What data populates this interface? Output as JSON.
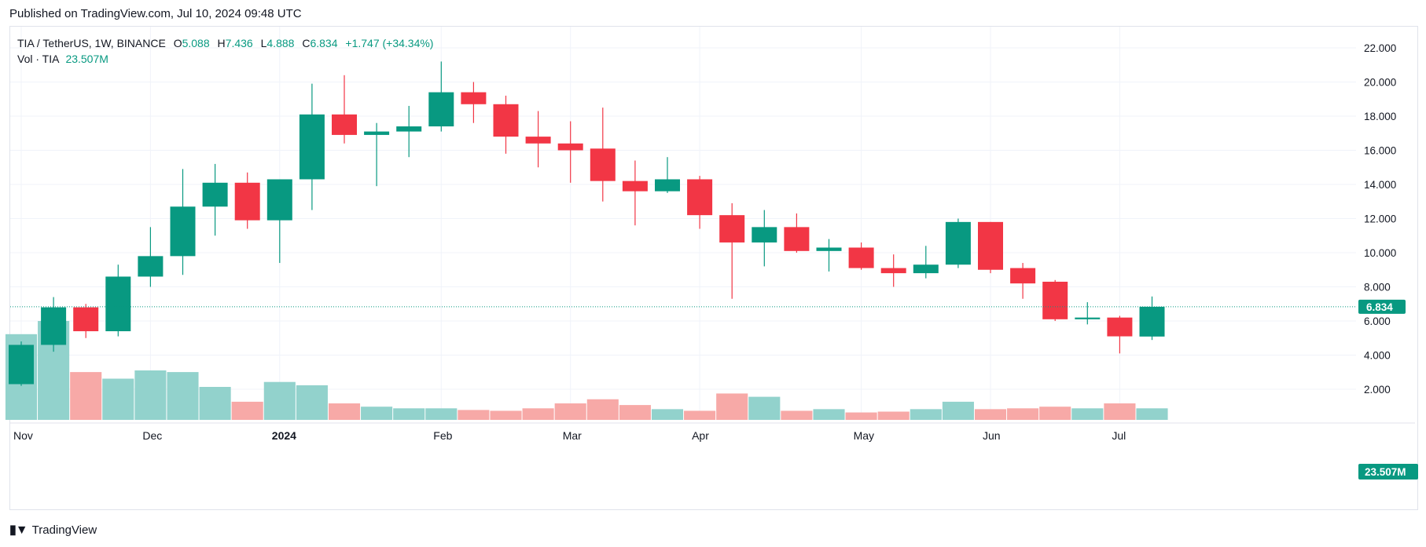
{
  "published": "Published on TradingView.com, Jul 10, 2024 09:48 UTC",
  "footer": {
    "brand": "TradingView",
    "icon": "tradingview-logo-icon"
  },
  "legend": {
    "symbol": "TIA / TetherUS, 1W, BINANCE",
    "o_label": "O",
    "o_value": "5.088",
    "h_label": "H",
    "h_value": "7.436",
    "l_label": "L",
    "l_value": "4.888",
    "c_label": "C",
    "c_value": "6.834",
    "change": "+1.747 (+34.34%)",
    "vol_label": "Vol · TIA",
    "vol_value": "23.507M"
  },
  "colors": {
    "up": "#089981",
    "down": "#F23645",
    "vol_up": "#92D2CC",
    "vol_down": "#F7A9A7",
    "grid": "#F0F3FA",
    "text": "#131722"
  },
  "chart_data": {
    "type": "candlestick",
    "ylim": [
      2.0,
      22.0
    ],
    "yticks": [
      "2.000",
      "4.000",
      "6.000",
      "8.000",
      "10.000",
      "12.000",
      "14.000",
      "16.000",
      "18.000",
      "20.000",
      "22.000"
    ],
    "last_price_label": "6.834",
    "volume_label": "23.507M",
    "x_ticks": [
      {
        "label": "Nov",
        "index": 0
      },
      {
        "label": "Dec",
        "index": 4
      },
      {
        "label": "2024",
        "index": 8
      },
      {
        "label": "Feb",
        "index": 13
      },
      {
        "label": "Mar",
        "index": 17
      },
      {
        "label": "Apr",
        "index": 21
      },
      {
        "label": "May",
        "index": 26
      },
      {
        "label": "Jun",
        "index": 30
      },
      {
        "label": "Jul",
        "index": 34
      }
    ],
    "candles": [
      {
        "o": 2.3,
        "h": 4.8,
        "l": 2.2,
        "c": 4.6,
        "v": 0.52
      },
      {
        "o": 4.6,
        "h": 7.4,
        "l": 4.2,
        "c": 6.8,
        "v": 0.6
      },
      {
        "o": 6.8,
        "h": 7.0,
        "l": 5.0,
        "c": 5.4,
        "v": 0.29
      },
      {
        "o": 5.4,
        "h": 9.3,
        "l": 5.1,
        "c": 8.6,
        "v": 0.25
      },
      {
        "o": 8.6,
        "h": 11.5,
        "l": 8.0,
        "c": 9.8,
        "v": 0.3
      },
      {
        "o": 9.8,
        "h": 14.9,
        "l": 8.7,
        "c": 12.7,
        "v": 0.29
      },
      {
        "o": 12.7,
        "h": 15.2,
        "l": 11.0,
        "c": 14.1,
        "v": 0.2
      },
      {
        "o": 14.1,
        "h": 14.7,
        "l": 11.4,
        "c": 11.9,
        "v": 0.11
      },
      {
        "o": 11.9,
        "h": 14.3,
        "l": 9.4,
        "c": 14.3,
        "v": 0.23
      },
      {
        "o": 14.3,
        "h": 19.9,
        "l": 12.5,
        "c": 18.1,
        "v": 0.21
      },
      {
        "o": 18.1,
        "h": 20.4,
        "l": 16.4,
        "c": 16.9,
        "v": 0.1
      },
      {
        "o": 16.9,
        "h": 17.6,
        "l": 13.9,
        "c": 17.1,
        "v": 0.08
      },
      {
        "o": 17.1,
        "h": 18.6,
        "l": 15.6,
        "c": 17.4,
        "v": 0.07
      },
      {
        "o": 17.4,
        "h": 21.2,
        "l": 17.1,
        "c": 19.4,
        "v": 0.07
      },
      {
        "o": 19.4,
        "h": 20.0,
        "l": 17.6,
        "c": 18.7,
        "v": 0.06
      },
      {
        "o": 18.7,
        "h": 19.2,
        "l": 15.8,
        "c": 16.8,
        "v": 0.055
      },
      {
        "o": 16.8,
        "h": 18.3,
        "l": 15.0,
        "c": 16.4,
        "v": 0.07
      },
      {
        "o": 16.4,
        "h": 17.7,
        "l": 14.1,
        "c": 16.0,
        "v": 0.1
      },
      {
        "o": 16.1,
        "h": 18.5,
        "l": 13.0,
        "c": 14.2,
        "v": 0.125
      },
      {
        "o": 14.2,
        "h": 15.4,
        "l": 11.6,
        "c": 13.6,
        "v": 0.09
      },
      {
        "o": 13.6,
        "h": 15.6,
        "l": 13.5,
        "c": 14.3,
        "v": 0.065
      },
      {
        "o": 14.3,
        "h": 14.5,
        "l": 11.4,
        "c": 12.2,
        "v": 0.055
      },
      {
        "o": 12.2,
        "h": 12.9,
        "l": 7.3,
        "c": 10.6,
        "v": 0.16
      },
      {
        "o": 10.6,
        "h": 12.5,
        "l": 9.2,
        "c": 11.5,
        "v": 0.14
      },
      {
        "o": 11.5,
        "h": 12.3,
        "l": 10.0,
        "c": 10.1,
        "v": 0.055
      },
      {
        "o": 10.1,
        "h": 10.8,
        "l": 8.9,
        "c": 10.3,
        "v": 0.065
      },
      {
        "o": 10.3,
        "h": 10.6,
        "l": 9.0,
        "c": 9.1,
        "v": 0.045
      },
      {
        "o": 9.1,
        "h": 9.9,
        "l": 8.0,
        "c": 8.8,
        "v": 0.05
      },
      {
        "o": 8.8,
        "h": 10.4,
        "l": 8.5,
        "c": 9.3,
        "v": 0.065
      },
      {
        "o": 9.3,
        "h": 12.0,
        "l": 9.1,
        "c": 11.8,
        "v": 0.11
      },
      {
        "o": 11.8,
        "h": 11.8,
        "l": 8.8,
        "c": 9.0,
        "v": 0.065
      },
      {
        "o": 9.1,
        "h": 9.4,
        "l": 7.3,
        "c": 8.2,
        "v": 0.07
      },
      {
        "o": 8.3,
        "h": 8.4,
        "l": 6.0,
        "c": 6.1,
        "v": 0.08
      },
      {
        "o": 6.1,
        "h": 7.1,
        "l": 5.8,
        "c": 6.2,
        "v": 0.07
      },
      {
        "o": 6.2,
        "h": 6.3,
        "l": 4.1,
        "c": 5.1,
        "v": 0.1
      },
      {
        "o": 5.088,
        "h": 7.436,
        "l": 4.888,
        "c": 6.834,
        "v": 0.07
      }
    ]
  }
}
